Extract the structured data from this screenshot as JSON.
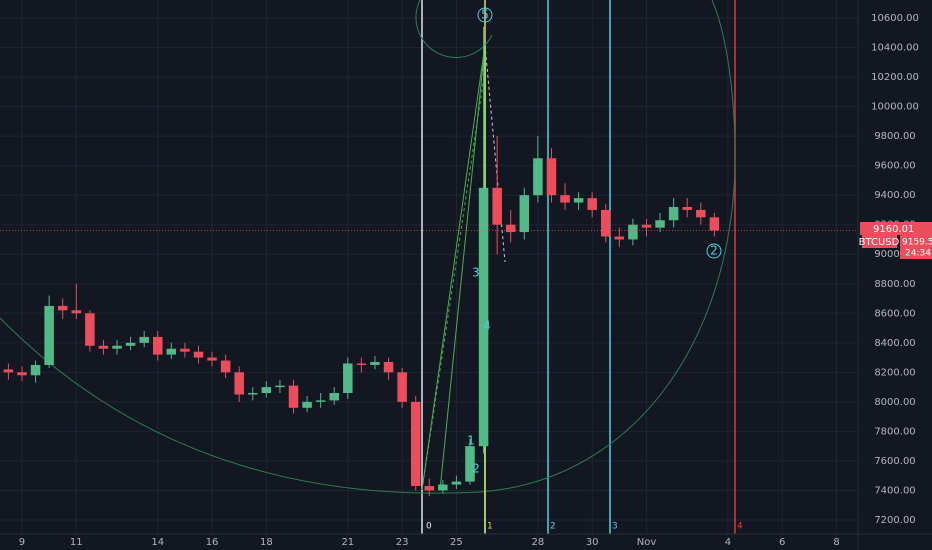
{
  "chart_data": {
    "type": "candlestick",
    "symbol": "BTCUSD",
    "x": [
      8.5,
      9,
      9.5,
      10,
      10.5,
      11,
      11.5,
      12,
      12.5,
      13,
      13.5,
      14,
      14.5,
      15,
      15.5,
      16,
      16.5,
      17,
      17.5,
      18,
      18.5,
      19,
      19.5,
      20,
      20.5,
      21,
      21.5,
      22,
      22.5,
      23,
      23.5,
      24,
      24.5,
      25,
      25.5,
      26,
      26.5,
      27,
      27.5,
      28,
      28.5,
      29,
      29.5,
      30,
      30.5,
      31,
      31.5,
      32,
      32.5,
      33,
      33.5,
      34,
      34.5
    ],
    "open": [
      8220,
      8200,
      8180,
      8250,
      8650,
      8620,
      8600,
      8380,
      8360,
      8380,
      8400,
      8440,
      8320,
      8360,
      8340,
      8300,
      8280,
      8200,
      8050,
      8060,
      8100,
      8110,
      7960,
      8000,
      8010,
      8060,
      8260,
      8250,
      8270,
      8200,
      8000,
      7430,
      7400,
      7440,
      7460,
      7700,
      9450,
      9200,
      9150,
      9400,
      9650,
      9400,
      9350,
      9380,
      9300,
      9120,
      9100,
      9200,
      9180,
      9230,
      9320,
      9300,
      9250
    ],
    "high": [
      8260,
      8240,
      8280,
      8720,
      8700,
      8800,
      8620,
      8420,
      8420,
      8440,
      8480,
      8480,
      8400,
      8400,
      8380,
      8340,
      8320,
      8240,
      8100,
      8140,
      8150,
      8150,
      8040,
      8060,
      8100,
      8300,
      8300,
      8310,
      8300,
      8230,
      8040,
      7480,
      7470,
      7500,
      7750,
      10540,
      9800,
      9300,
      9450,
      9800,
      9720,
      9480,
      9420,
      9420,
      9340,
      9180,
      9240,
      9240,
      9280,
      9380,
      9380,
      9350,
      9280
    ],
    "low": [
      8150,
      8140,
      8130,
      8230,
      8560,
      8560,
      8340,
      8320,
      8320,
      8350,
      8370,
      8280,
      8290,
      8300,
      8260,
      8240,
      8160,
      8000,
      8010,
      8030,
      8060,
      7920,
      7930,
      7960,
      7980,
      8020,
      8200,
      8220,
      8150,
      7960,
      7400,
      7360,
      7380,
      7410,
      7440,
      7650,
      9000,
      9080,
      9100,
      9350,
      9350,
      9300,
      9300,
      9250,
      9080,
      9050,
      9060,
      9120,
      9150,
      9180,
      9250,
      9200,
      9120
    ],
    "close": [
      8200,
      8180,
      8250,
      8650,
      8620,
      8600,
      8380,
      8360,
      8380,
      8400,
      8440,
      8320,
      8360,
      8340,
      8300,
      8280,
      8200,
      8050,
      8060,
      8100,
      8110,
      7960,
      8000,
      8010,
      8060,
      8260,
      8250,
      8270,
      8200,
      8000,
      7430,
      7400,
      7440,
      7460,
      7700,
      9450,
      9200,
      9150,
      9400,
      9650,
      9400,
      9350,
      9380,
      9300,
      9120,
      9100,
      9200,
      9180,
      9230,
      9320,
      9300,
      9250,
      9160
    ],
    "up_color": "#53b987",
    "down_color": "#eb4d5c",
    "xlim": [
      8.19,
      39.79
    ],
    "xticks": [
      9,
      11,
      14,
      16,
      18,
      21,
      23,
      25,
      28,
      30,
      {
        "value": 32,
        "label": "Nov"
      },
      {
        "value": 35,
        "label": "4"
      },
      {
        "value": 37,
        "label": "6"
      },
      {
        "value": 39,
        "label": "8"
      }
    ],
    "ylim": [
      7105,
      10722
    ],
    "yticks": [
      {
        "value": 7200,
        "label": "7200.00"
      },
      {
        "value": 7400,
        "label": "7400.00"
      },
      {
        "value": 7600,
        "label": "7600.00"
      },
      {
        "value": 7800,
        "label": "7800.00"
      },
      {
        "value": 8000,
        "label": "8000.00"
      },
      {
        "value": 8200,
        "label": "8200.00"
      },
      {
        "value": 8400,
        "label": "8400.00"
      },
      {
        "value": 8600,
        "label": "8600.00"
      },
      {
        "value": 8800,
        "label": "8800.00"
      },
      {
        "value": 9000,
        "label": "9000.00"
      },
      {
        "value": 9200,
        "label": "9200.00"
      },
      {
        "value": 9400,
        "label": "9400.00"
      },
      {
        "value": 9600,
        "label": "9600.00"
      },
      {
        "value": 9800,
        "label": "9800.00"
      },
      {
        "value": 10000,
        "label": "10000.00"
      },
      {
        "value": 10200,
        "label": "10200.00"
      },
      {
        "value": 10400,
        "label": "10400.00"
      },
      {
        "value": 10600,
        "label": "10600.00"
      }
    ],
    "grid": true,
    "price_tags": [
      "9160.01",
      "9159.52",
      "24:34"
    ],
    "wave_labels": [
      "5",
      "3",
      "4",
      "1",
      "2",
      "2"
    ],
    "time_zone_labels": [
      "0",
      "1",
      "2",
      "3",
      "4"
    ]
  }
}
